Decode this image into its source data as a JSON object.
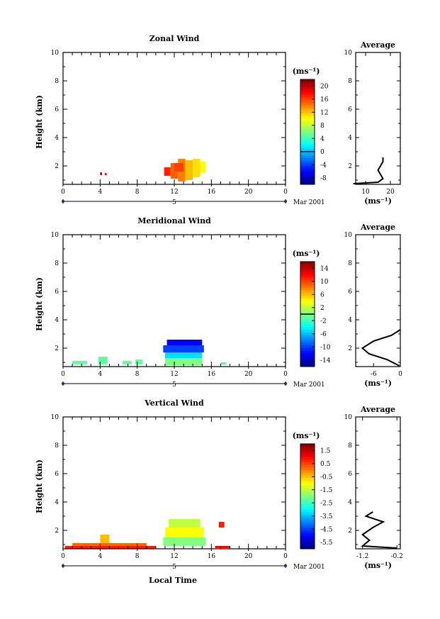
{
  "footer": {
    "xlabel": "Local Time"
  },
  "chart_data": [
    {
      "type": "heatmap",
      "title": "Zonal Wind",
      "ylabel": "Height (km)",
      "xlim": [
        0,
        24
      ],
      "ylim": [
        0.7,
        10
      ],
      "xticks": [
        "0",
        "4",
        "8",
        "12",
        "16",
        "20",
        "0"
      ],
      "yticks": [
        "2",
        "4",
        "6",
        "8",
        "10"
      ],
      "date_center": "5",
      "date_right": "Mar 2001",
      "colorbar": {
        "unit": "(ms⁻¹)",
        "ticks": [
          "20",
          "16",
          "12",
          "8",
          "4",
          "0",
          "-4",
          "-8"
        ],
        "range": [
          -10,
          22
        ],
        "zero_line": 0
      },
      "cells": [
        {
          "x0": 4.0,
          "x1": 4.2,
          "y0": 1.35,
          "y1": 1.55,
          "v": 20
        },
        {
          "x0": 4.5,
          "x1": 4.7,
          "y0": 1.35,
          "y1": 1.5,
          "v": 18
        },
        {
          "x0": 10.9,
          "x1": 11.6,
          "y0": 1.3,
          "y1": 1.9,
          "v": 17
        },
        {
          "x0": 11.6,
          "x1": 12.4,
          "y0": 1.1,
          "y1": 2.2,
          "v": 15
        },
        {
          "x0": 12.4,
          "x1": 13.2,
          "y0": 0.9,
          "y1": 2.5,
          "v": 14
        },
        {
          "x0": 13.2,
          "x1": 14.0,
          "y0": 1.0,
          "y1": 2.4,
          "v": 12
        },
        {
          "x0": 14.0,
          "x1": 14.8,
          "y0": 1.2,
          "y1": 2.5,
          "v": 11
        },
        {
          "x0": 14.8,
          "x1": 15.4,
          "y0": 1.5,
          "y1": 2.3,
          "v": 10
        },
        {
          "x0": 12.0,
          "x1": 13.0,
          "y0": 1.6,
          "y1": 2.2,
          "v": 16
        }
      ],
      "profile": {
        "title": "Average",
        "xlabel": "(ms⁻¹)",
        "xlim": [
          6,
          24
        ],
        "xticks": [
          "10",
          "20"
        ],
        "yticks": [
          "2",
          "4",
          "6",
          "8",
          "10"
        ],
        "x": [
          5,
          15,
          17,
          16,
          15,
          16,
          17,
          17
        ],
        "y": [
          0.75,
          0.85,
          1.1,
          1.4,
          1.7,
          2.0,
          2.3,
          2.6
        ]
      }
    },
    {
      "type": "heatmap",
      "title": "Meridional Wind",
      "ylabel": "Height (km)",
      "xlim": [
        0,
        24
      ],
      "ylim": [
        0.7,
        10
      ],
      "xticks": [
        "0",
        "4",
        "8",
        "12",
        "16",
        "20",
        "0"
      ],
      "yticks": [
        "2",
        "4",
        "6",
        "8",
        "10"
      ],
      "date_center": "5",
      "date_right": "Mar 2001",
      "colorbar": {
        "unit": "(ms⁻¹)",
        "ticks": [
          "14",
          "10",
          "6",
          "2",
          "-2",
          "-6",
          "-10",
          "-14"
        ],
        "range": [
          -16,
          16
        ],
        "zero_line": 0
      },
      "cells": [
        {
          "x0": 1.0,
          "x1": 2.6,
          "y0": 0.85,
          "y1": 1.1,
          "v": -1
        },
        {
          "x0": 3.8,
          "x1": 4.8,
          "y0": 0.85,
          "y1": 1.4,
          "v": -1
        },
        {
          "x0": 6.4,
          "x1": 7.4,
          "y0": 0.85,
          "y1": 1.1,
          "v": -1
        },
        {
          "x0": 7.8,
          "x1": 8.6,
          "y0": 0.85,
          "y1": 1.2,
          "v": -1
        },
        {
          "x0": 11.0,
          "x1": 15.0,
          "y0": 0.8,
          "y1": 1.3,
          "v": 0
        },
        {
          "x0": 11.0,
          "x1": 15.0,
          "y0": 1.3,
          "y1": 1.7,
          "v": -5
        },
        {
          "x0": 10.8,
          "x1": 15.2,
          "y0": 1.7,
          "y1": 2.2,
          "v": -10
        },
        {
          "x0": 11.2,
          "x1": 15.0,
          "y0": 2.2,
          "y1": 2.6,
          "v": -12
        },
        {
          "x0": 17.0,
          "x1": 17.6,
          "y0": 0.85,
          "y1": 1.0,
          "v": -2
        }
      ],
      "profile": {
        "title": "Average",
        "xlabel": "(ms⁻¹)",
        "xlim": [
          -10,
          0
        ],
        "xticks": [
          "-6",
          "0"
        ],
        "yticks": [
          "2",
          "4",
          "6",
          "8",
          "10"
        ],
        "x": [
          -0.2,
          -3,
          -7,
          -8.5,
          -6,
          -2,
          0
        ],
        "y": [
          0.75,
          1.2,
          1.6,
          2.0,
          2.5,
          2.9,
          3.3
        ]
      }
    },
    {
      "type": "heatmap",
      "title": "Vertical Wind",
      "ylabel": "Height (km)",
      "xlim": [
        0,
        24
      ],
      "ylim": [
        0.7,
        10
      ],
      "xticks": [
        "0",
        "4",
        "8",
        "12",
        "16",
        "20",
        "0"
      ],
      "yticks": [
        "2",
        "4",
        "6",
        "8",
        "10"
      ],
      "date_center": "5",
      "date_right": "Mar 2001",
      "colorbar": {
        "unit": "(ms⁻¹)",
        "ticks": [
          "1.5",
          "0.5",
          "-0.5",
          "-1.5",
          "-2.5",
          "-3.5",
          "-4.5",
          "-5.5"
        ],
        "range": [
          -6,
          2
        ]
      },
      "cells": [
        {
          "x0": 0.2,
          "x1": 10.0,
          "y0": 0.7,
          "y1": 0.9,
          "v": 0.8
        },
        {
          "x0": 1.0,
          "x1": 9.0,
          "y0": 0.9,
          "y1": 1.1,
          "v": 0.2
        },
        {
          "x0": 4.0,
          "x1": 5.0,
          "y0": 1.1,
          "y1": 1.7,
          "v": -0.5
        },
        {
          "x0": 10.8,
          "x1": 15.4,
          "y0": 0.9,
          "y1": 1.5,
          "v": -2.0
        },
        {
          "x0": 11.0,
          "x1": 15.2,
          "y0": 1.5,
          "y1": 2.2,
          "v": -1.0
        },
        {
          "x0": 11.4,
          "x1": 14.8,
          "y0": 2.2,
          "y1": 2.8,
          "v": -1.5
        },
        {
          "x0": 16.4,
          "x1": 18.0,
          "y0": 0.75,
          "y1": 0.9,
          "v": 1.0
        },
        {
          "x0": 16.8,
          "x1": 17.4,
          "y0": 2.2,
          "y1": 2.6,
          "v": 0.8
        }
      ],
      "profile": {
        "title": "Average",
        "xlabel": "(ms⁻¹)",
        "xlim": [
          -1.4,
          -0.1
        ],
        "xticks": [
          "-1.2",
          "-0.2"
        ],
        "yticks": [
          "2",
          "4",
          "6",
          "8",
          "10"
        ],
        "x": [
          -0.2,
          -1.2,
          -1.0,
          -1.2,
          -0.9,
          -0.6,
          -1.1,
          -0.9
        ],
        "y": [
          0.75,
          0.9,
          1.3,
          1.7,
          2.2,
          2.6,
          3.0,
          3.3
        ]
      }
    }
  ]
}
